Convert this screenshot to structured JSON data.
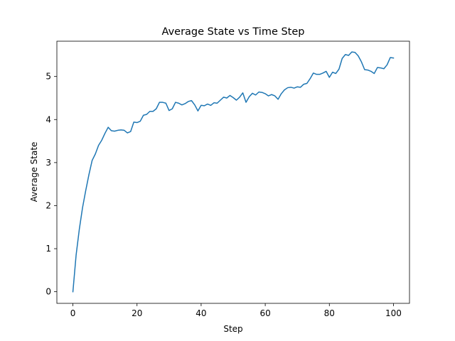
{
  "chart_data": {
    "type": "line",
    "title": "Average State vs Time Step",
    "xlabel": "Step",
    "ylabel": "Average State",
    "xlim": [
      -5,
      105
    ],
    "ylim": [
      -0.27,
      5.82
    ],
    "xticks": [
      0,
      20,
      40,
      60,
      80,
      100
    ],
    "yticks": [
      0,
      1,
      2,
      3,
      4,
      5
    ],
    "grid": false,
    "legend": "none",
    "line_color": "#1f77b4",
    "series": [
      {
        "x": [
          0,
          1,
          2,
          3,
          4,
          5,
          6,
          7,
          8,
          9,
          10,
          11,
          12,
          13,
          14,
          15,
          16,
          17,
          18,
          19,
          20,
          21,
          22,
          23,
          24,
          25,
          26,
          27,
          28,
          29,
          30,
          31,
          32,
          33,
          34,
          35,
          36,
          37,
          38,
          39,
          40,
          41,
          42,
          43,
          44,
          45,
          46,
          47,
          48,
          49,
          50,
          51,
          52,
          53,
          54,
          55,
          56,
          57,
          58,
          59,
          60,
          61,
          62,
          63,
          64,
          65,
          66,
          67,
          68,
          69,
          70,
          71,
          72,
          73,
          74,
          75,
          76,
          77,
          78,
          79,
          80,
          81,
          82,
          83,
          84,
          85,
          86,
          87,
          88,
          89,
          90,
          91,
          92,
          93,
          94,
          95,
          96,
          97,
          98,
          99,
          100
        ],
        "values": [
          0.0,
          0.85,
          1.45,
          1.95,
          2.35,
          2.72,
          3.05,
          3.2,
          3.4,
          3.52,
          3.68,
          3.82,
          3.74,
          3.73,
          3.75,
          3.76,
          3.75,
          3.69,
          3.72,
          3.94,
          3.93,
          3.96,
          4.1,
          4.12,
          4.19,
          4.19,
          4.25,
          4.4,
          4.4,
          4.38,
          4.21,
          4.25,
          4.4,
          4.38,
          4.34,
          4.37,
          4.42,
          4.44,
          4.34,
          4.2,
          4.33,
          4.32,
          4.36,
          4.33,
          4.39,
          4.38,
          4.45,
          4.52,
          4.5,
          4.56,
          4.51,
          4.45,
          4.52,
          4.62,
          4.4,
          4.53,
          4.61,
          4.57,
          4.64,
          4.63,
          4.6,
          4.55,
          4.58,
          4.55,
          4.47,
          4.6,
          4.69,
          4.74,
          4.75,
          4.73,
          4.76,
          4.75,
          4.82,
          4.84,
          4.95,
          5.08,
          5.05,
          5.05,
          5.08,
          5.12,
          4.98,
          5.1,
          5.07,
          5.17,
          5.42,
          5.51,
          5.49,
          5.57,
          5.56,
          5.48,
          5.34,
          5.16,
          5.15,
          5.12,
          5.07,
          5.21,
          5.2,
          5.18,
          5.27,
          5.44,
          5.43
        ]
      }
    ]
  }
}
